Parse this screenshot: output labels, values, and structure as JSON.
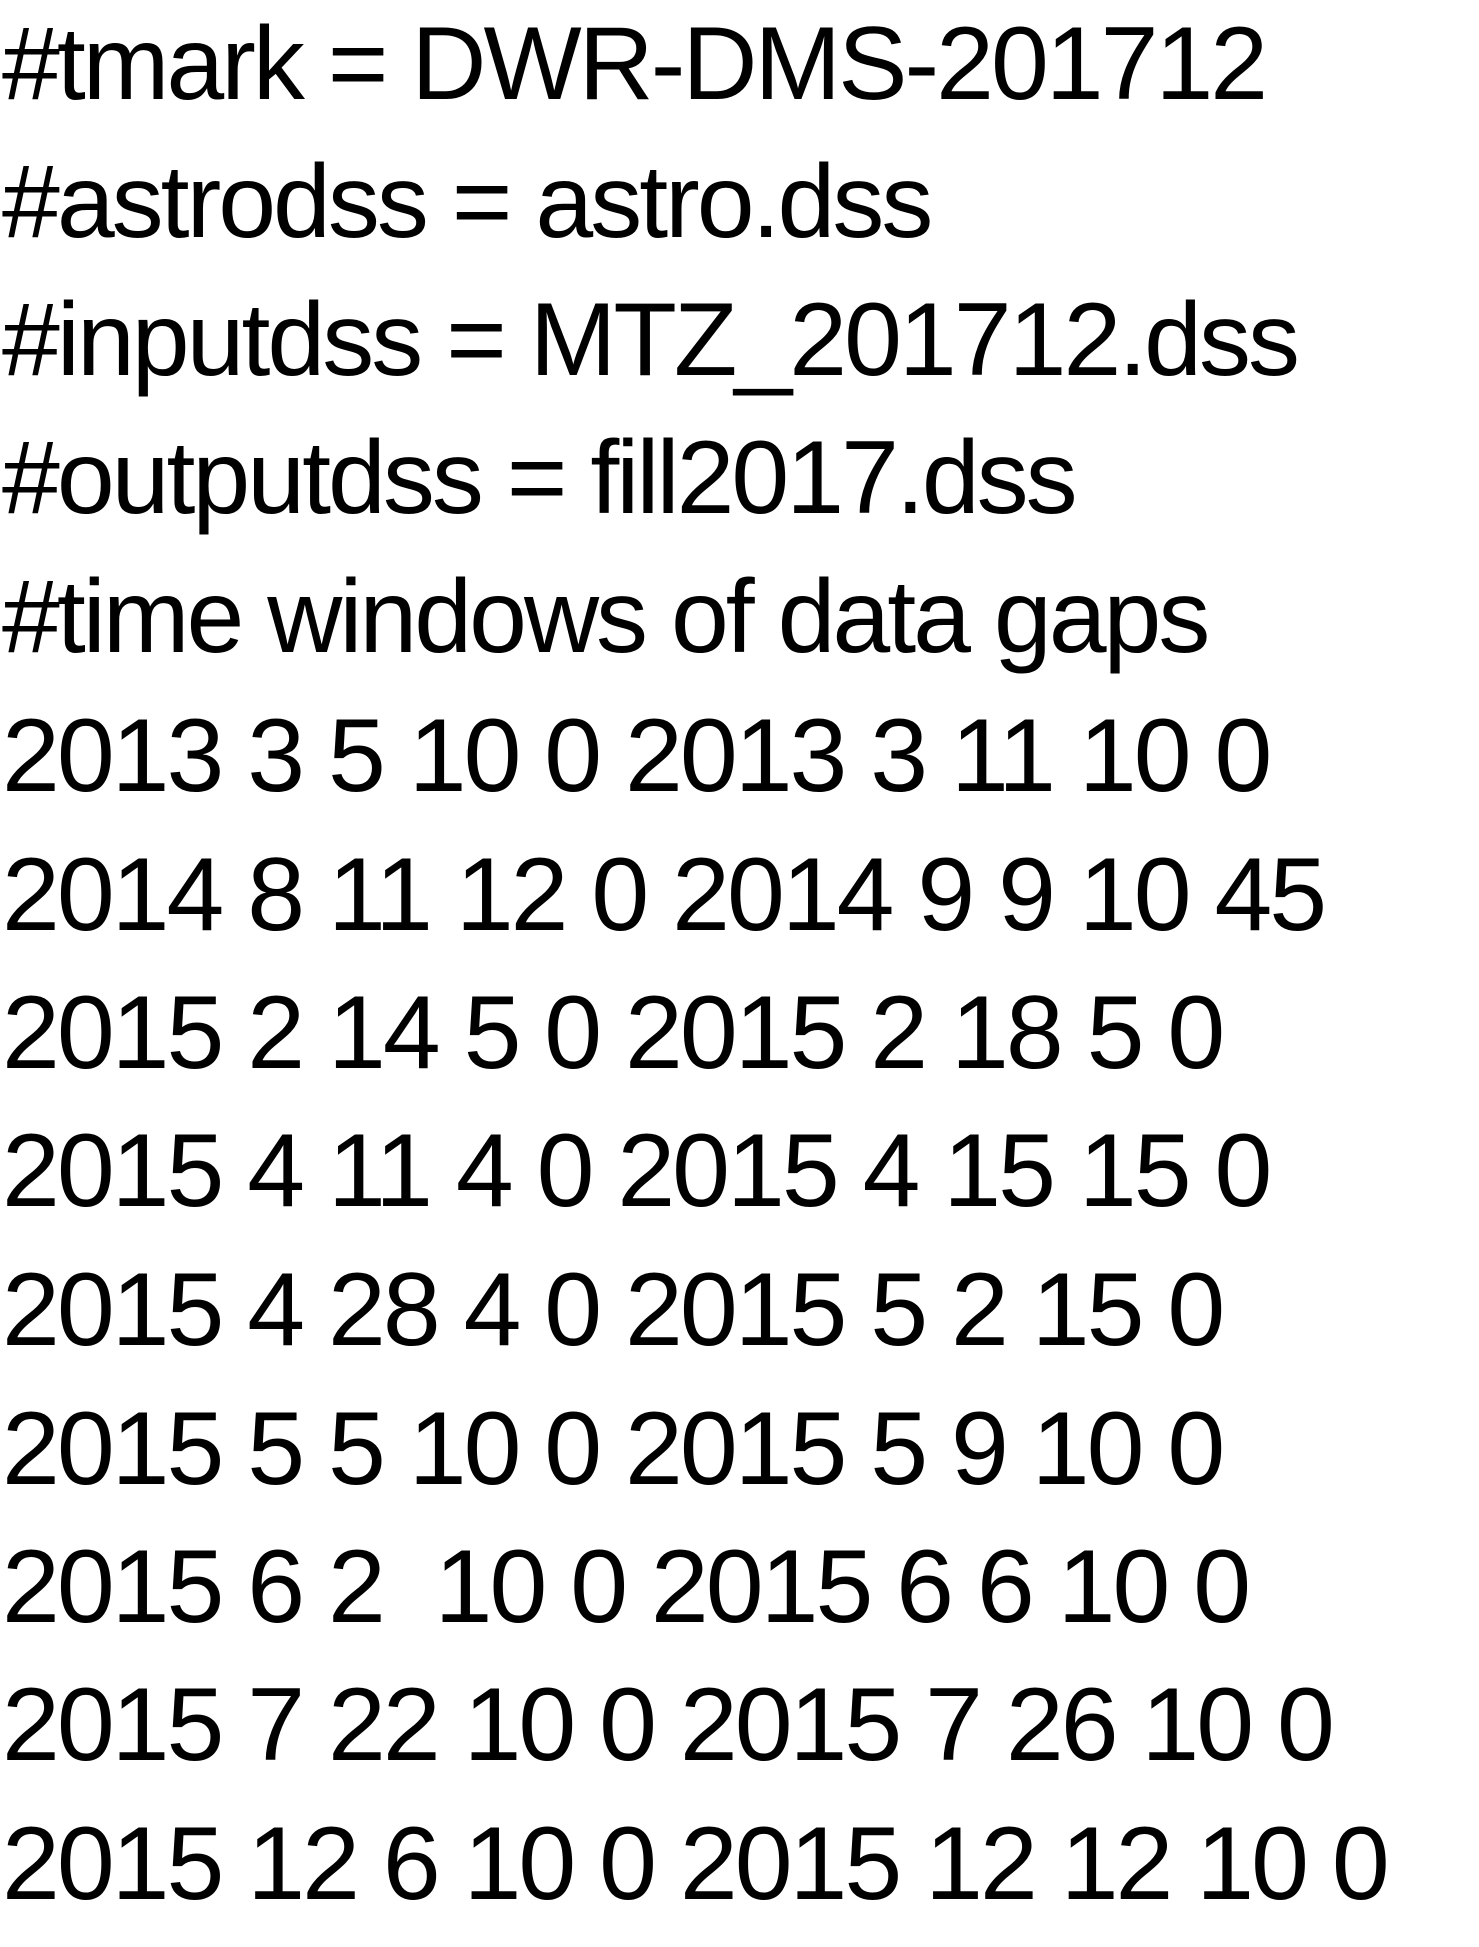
{
  "document": {
    "header_lines": [
      "#tmark = DWR-DMS-201712",
      "#astrodss = astro.dss",
      "#inputdss = MTZ_201712.dss",
      "#outputdss = fill2017.dss",
      "#time windows of data gaps"
    ],
    "gap_lines": [
      "2013 3 5 10 0 2013 3 11 10 0",
      "2014 8 11 12 0 2014 9 9 10 45",
      "2015 2 14 5 0 2015 2 18 5 0",
      "2015 4 11 4 0 2015 4 15 15 0",
      "2015 4 28 4 0 2015 5 2 15 0",
      "2015 5 5 10 0 2015 5 9 10 0",
      "2015 6 2  10 0 2015 6 6 10 0",
      "2015 7 22 10 0 2015 7 26 10 0",
      "2015 12 6 10 0 2015 12 12 10 0"
    ]
  }
}
